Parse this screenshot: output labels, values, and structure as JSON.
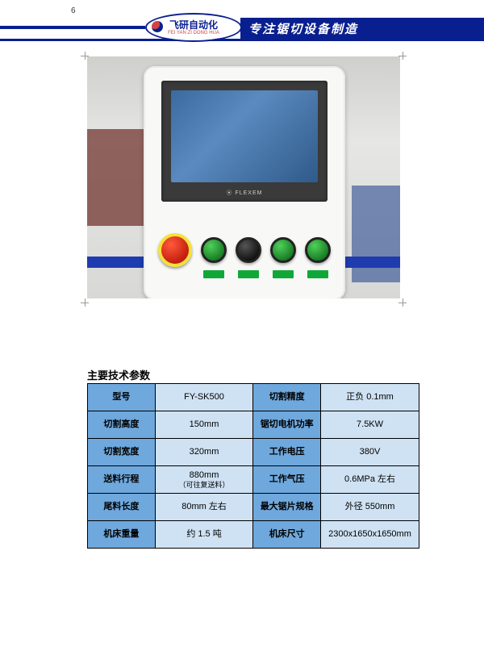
{
  "page_number": "6",
  "header": {
    "company_cn": "飞研自动化",
    "company_py": "FEI YAN  ZI DONG HUA",
    "slogan": "专注锯切设备制造"
  },
  "photo": {
    "screen_brand": "⦿ FLEXEM"
  },
  "spec": {
    "title": "主要技术参数",
    "rows": [
      {
        "l1": "型号",
        "v1": "FY-SK500",
        "l2": "切割精度",
        "v2": "正负 0.1mm"
      },
      {
        "l1": "切割高度",
        "v1": "150mm",
        "l2": "锯切电机功率",
        "v2": "7.5KW"
      },
      {
        "l1": "切割宽度",
        "v1": "320mm",
        "l2": "工作电压",
        "v2": "380V"
      },
      {
        "l1": "送料行程",
        "v1": "880mm",
        "v1b": "（可往复送料）",
        "l2": "工作气压",
        "v2": "0.6MPa 左右"
      },
      {
        "l1": "尾料长度",
        "v1": "80mm 左右",
        "l2": "最大锯片规格",
        "v2": "外径 550mm"
      },
      {
        "l1": "机床重量",
        "v1": "约 1.5 吨",
        "l2": "机床尺寸",
        "v2": "2300x1650x1650mm"
      }
    ]
  },
  "colors": {
    "header_blue": "#0a1f8f",
    "table_label_bg": "#6fa8dc",
    "table_value_bg": "#cfe2f3",
    "estop_red": "#c41e0f",
    "btn_green": "#167a22"
  }
}
